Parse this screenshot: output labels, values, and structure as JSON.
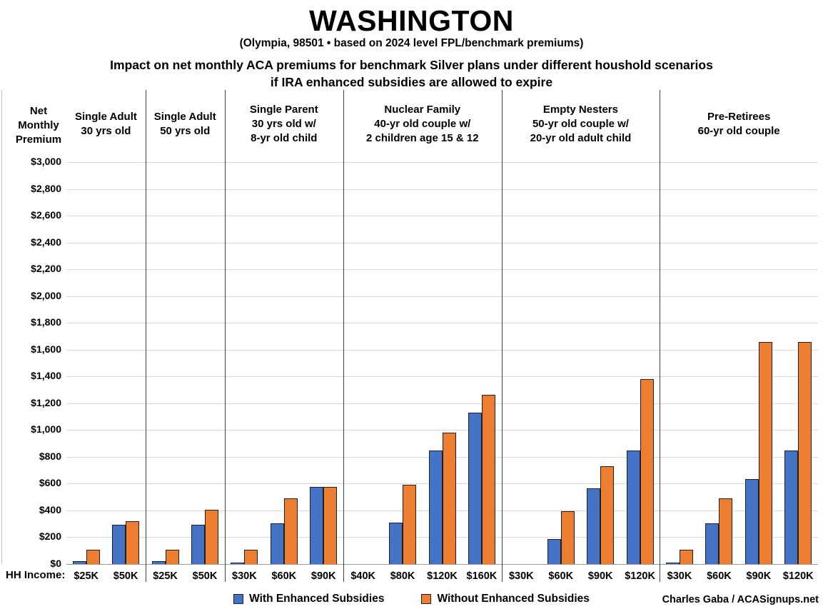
{
  "header": {
    "title": "WASHINGTON",
    "subtitle": "(Olympia, 98501 • based on 2024 level FPL/benchmark premiums)",
    "description_line1": "Impact on net monthly ACA premiums for benchmark Silver plans under different houshold scenarios",
    "description_line2": "if IRA enhanced subsidies are allowed to expire"
  },
  "footer": {
    "credit": "Charles Gaba / ACASignups.net"
  },
  "chart_data": {
    "type": "bar",
    "title": "Impact on net monthly ACA premiums for benchmark Silver plans under different houshold scenarios if IRA enhanced subsidies are allowed to expire",
    "y_axis_title": "Net Monthly Premium",
    "x_axis_label": "HH Income:",
    "ylim": [
      0,
      3000
    ],
    "y_tick_step": 200,
    "y_tick_format": "$#,##0",
    "grid": true,
    "legend_position": "bottom",
    "series": [
      {
        "name": "With Enhanced Subsidies",
        "color": "#4472C4"
      },
      {
        "name": "Without Enhanced Subsidies",
        "color": "#ED7D31"
      }
    ],
    "groups": [
      {
        "label": "Single Adult\n30 yrs old",
        "categories": [
          "$25K",
          "$50K"
        ],
        "values": [
          [
            20,
            295
          ],
          [
            105,
            320
          ]
        ]
      },
      {
        "label": "Single Adult\n50 yrs old",
        "categories": [
          "$25K",
          "$50K"
        ],
        "values": [
          [
            20,
            295
          ],
          [
            105,
            405
          ]
        ]
      },
      {
        "label": "Single Parent\n30 yrs old w/\n8-yr old child",
        "categories": [
          "$30K",
          "$60K",
          "$90K"
        ],
        "values": [
          [
            8,
            305,
            575
          ],
          [
            105,
            490,
            575
          ]
        ]
      },
      {
        "label": "Nuclear Family\n40-yr old couple w/\n2 children age 15 & 12",
        "categories": [
          "$40K",
          "$80K",
          "$120K",
          "$160K"
        ],
        "values": [
          [
            0,
            310,
            845,
            1130
          ],
          [
            0,
            590,
            980,
            1265
          ]
        ]
      },
      {
        "label": "Empty Nesters\n50-yr old couple w/\n20-yr old adult child",
        "categories": [
          "$30K",
          "$60K",
          "$90K",
          "$120K"
        ],
        "values": [
          [
            0,
            185,
            565,
            845
          ],
          [
            0,
            395,
            730,
            1380
          ]
        ]
      },
      {
        "label": "Pre-Retirees\n60-yr old couple",
        "categories": [
          "$30K",
          "$60K",
          "$90K",
          "$120K"
        ],
        "values": [
          [
            8,
            305,
            635,
            845
          ],
          [
            105,
            490,
            1655,
            1655
          ]
        ]
      }
    ]
  }
}
